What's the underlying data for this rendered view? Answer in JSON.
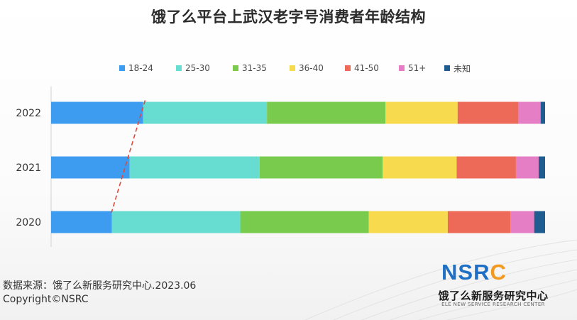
{
  "title": "饿了么平台上武汉老字号消费者年龄结构",
  "legend": [
    {
      "label": "18-24",
      "color": "#3d9cf0"
    },
    {
      "label": "25-30",
      "color": "#66ddd0"
    },
    {
      "label": "31-35",
      "color": "#79cb4e"
    },
    {
      "label": "36-40",
      "color": "#f7da4e"
    },
    {
      "label": "41-50",
      "color": "#ec6a57"
    },
    {
      "label": "51+",
      "color": "#e57ec4"
    },
    {
      "label": "未知",
      "color": "#1f5c8f"
    }
  ],
  "chart_data": {
    "type": "bar",
    "orientation": "horizontal",
    "stacked": true,
    "percent": true,
    "title": "饿了么平台上武汉老字号消费者年龄结构",
    "categories": [
      "2022",
      "2021",
      "2020"
    ],
    "series": [
      {
        "name": "18-24",
        "values": [
          18.6,
          15.9,
          12.3
        ]
      },
      {
        "name": "25-30",
        "values": [
          25.1,
          26.3,
          26.0
        ]
      },
      {
        "name": "31-35",
        "values": [
          24.0,
          24.9,
          26.0
        ]
      },
      {
        "name": "36-40",
        "values": [
          14.6,
          15.0,
          16.0
        ]
      },
      {
        "name": "41-50",
        "values": [
          12.3,
          12.0,
          12.7
        ]
      },
      {
        "name": "51+",
        "values": [
          4.5,
          4.6,
          4.8
        ]
      },
      {
        "name": "未知",
        "values": [
          0.9,
          1.3,
          2.2
        ]
      }
    ],
    "xlim": [
      0,
      100
    ],
    "grid": false,
    "legend_position": "top",
    "trend_line": {
      "series": "18-24",
      "style": "dashed",
      "color": "#e0483c"
    }
  },
  "footer": {
    "source": "数据来源：饿了么新服务研究中心.2023.06",
    "copyright": "Copyright©NSRC"
  },
  "logo": {
    "n": "N",
    "s": "S",
    "r": "R",
    "c": "C",
    "cn": "饿了么新服务研究中心",
    "en": "ELE NEW SERVICE RESEARCH CENTER"
  }
}
